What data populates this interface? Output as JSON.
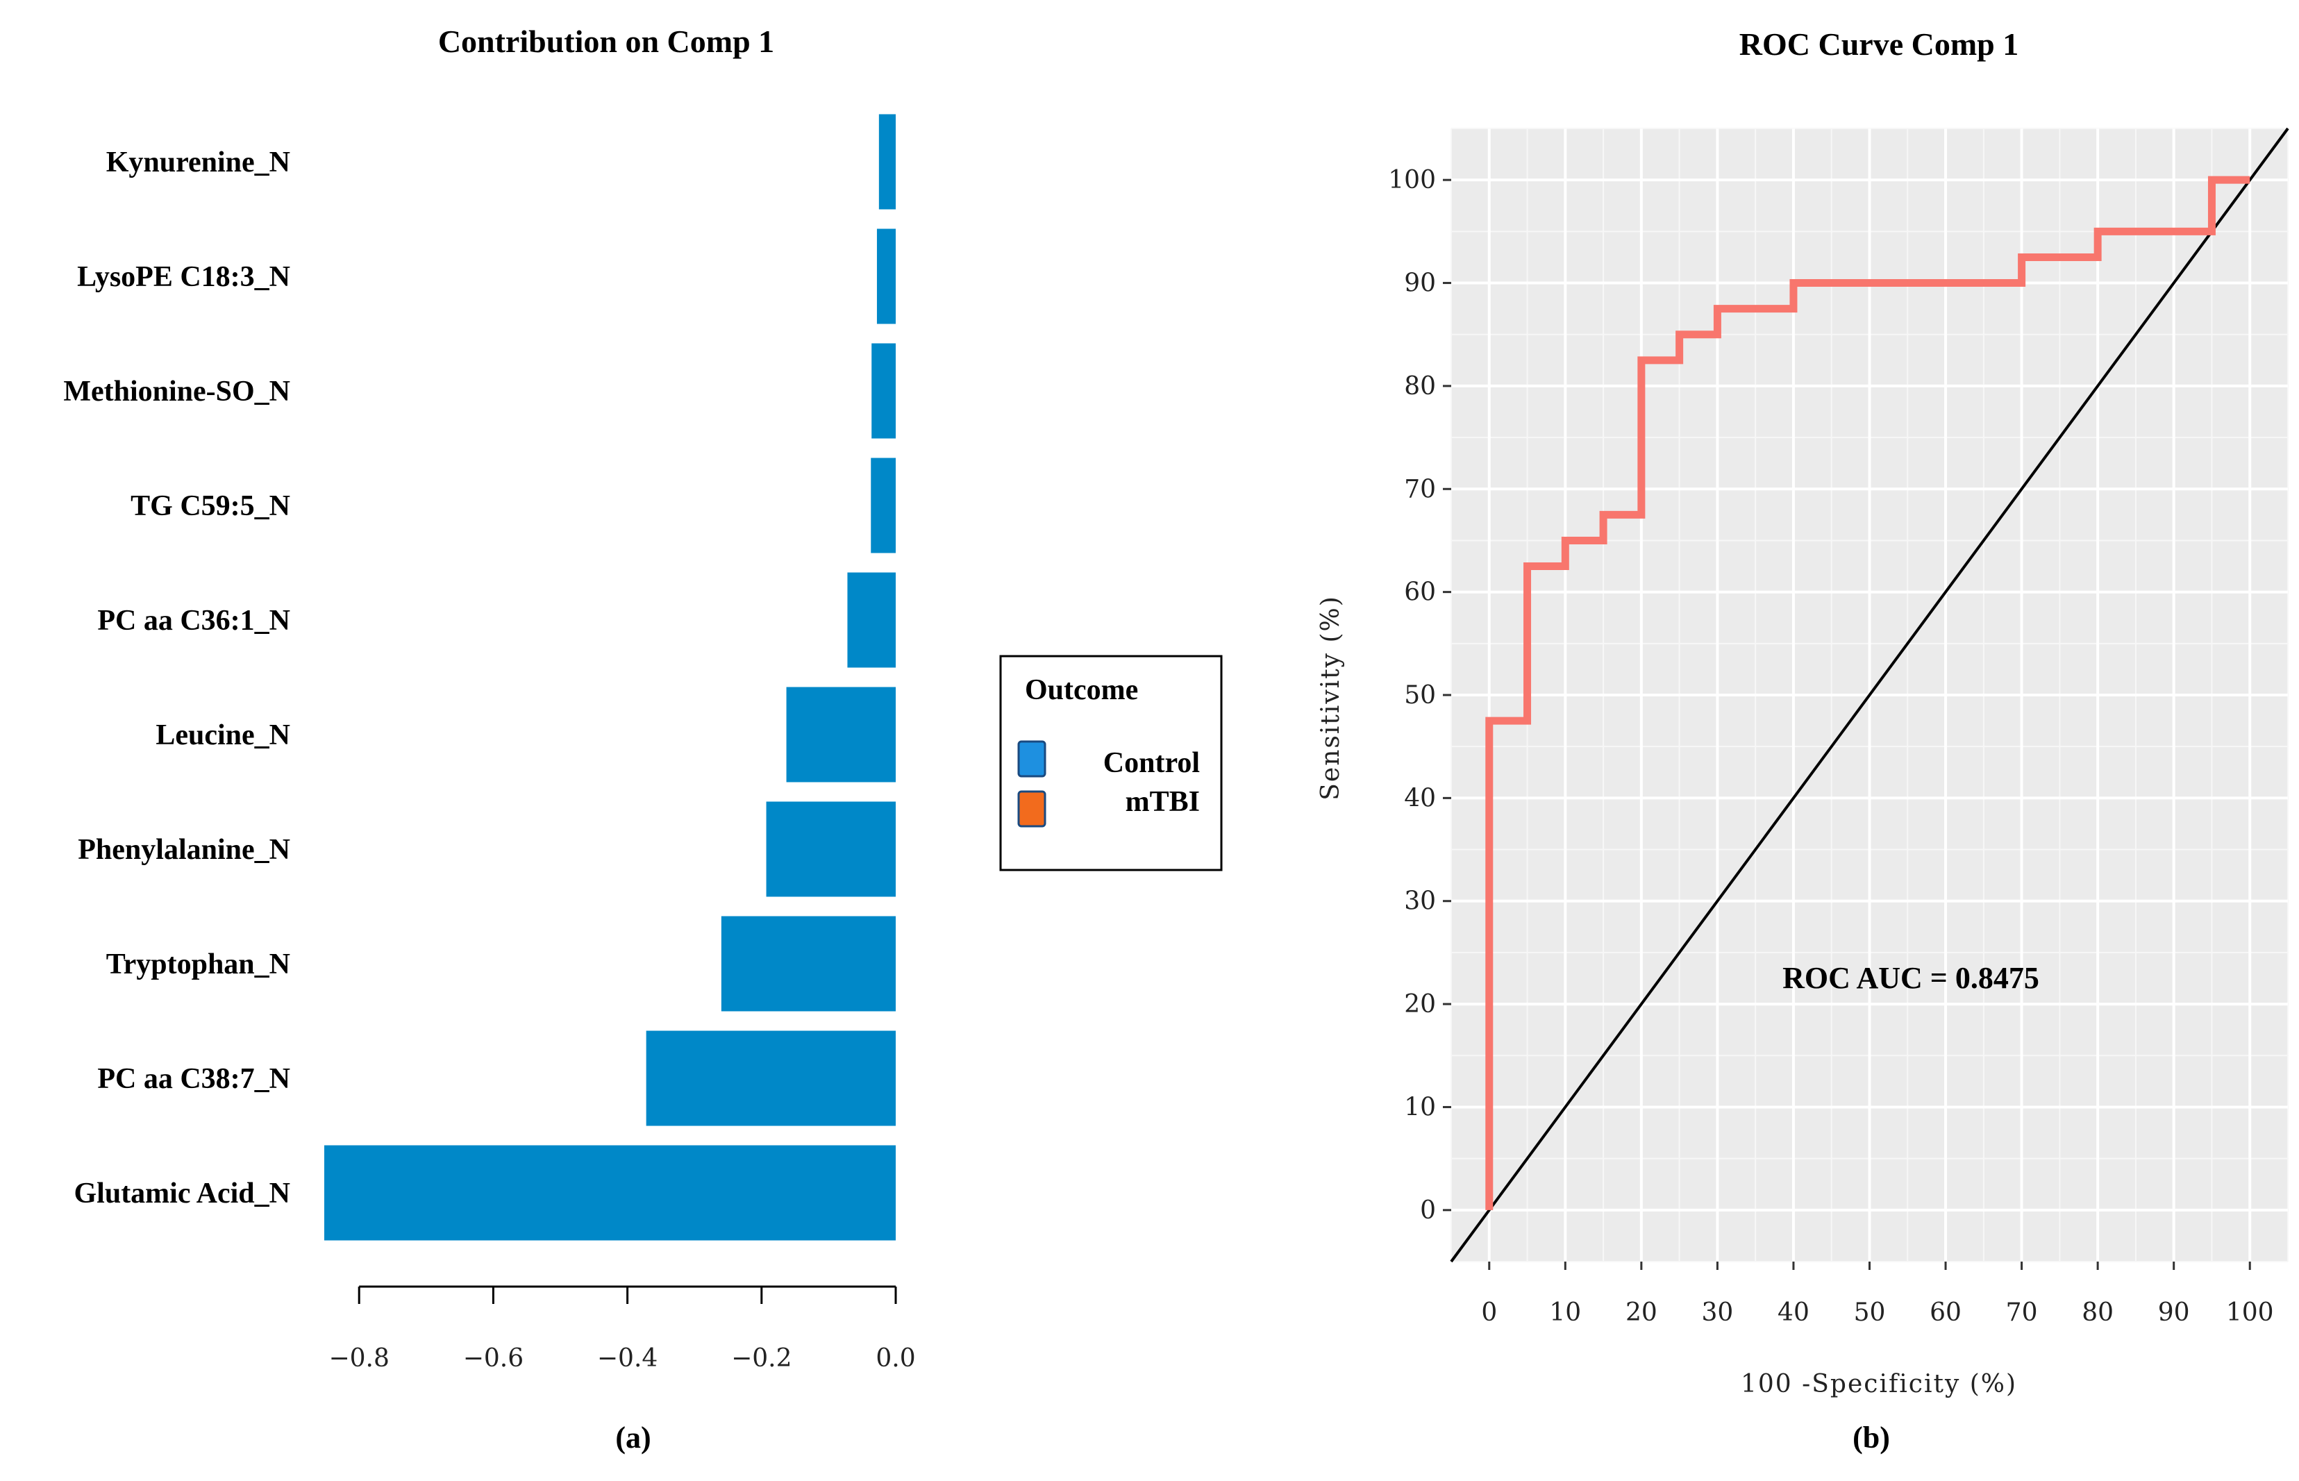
{
  "chart_data": [
    {
      "type": "bar",
      "orientation": "horizontal",
      "title": "Contribution on Comp 1",
      "panel_label": "(a)",
      "categories": [
        "Kynurenine_N",
        "LysoPE C18:3_N",
        "Methionine-SO_N",
        "TG C59:5_N",
        "PC aa C36:1_N",
        "Leucine_N",
        "Phenylalanine_N",
        "Tryptophan_N",
        "PC aa C38:7_N",
        "Glutamic Acid_N"
      ],
      "values": [
        -0.025,
        -0.028,
        -0.036,
        -0.037,
        -0.072,
        -0.163,
        -0.193,
        -0.26,
        -0.372,
        -0.852
      ],
      "xlim": [
        -0.85,
        0.0
      ],
      "xticks": [
        -0.8,
        -0.6,
        -0.4,
        -0.2,
        0.0
      ],
      "xtick_labels": [
        "−0.8",
        "−0.6",
        "−0.4",
        "−0.2",
        "0.0"
      ],
      "bar_color": "#0088C8",
      "legend": {
        "title": "Outcome",
        "entries": [
          {
            "label": "Control",
            "color": "#1E90E0"
          },
          {
            "label": "mTBI",
            "color": "#F26B1D"
          }
        ]
      }
    },
    {
      "type": "line",
      "title": "ROC Curve Comp 1",
      "panel_label": "(b)",
      "xlabel": "100 -Specificity (%)",
      "ylabel": "Sensitivity (%)",
      "xlim": [
        -5,
        105
      ],
      "ylim": [
        -5,
        105
      ],
      "xticks": [
        0,
        10,
        20,
        30,
        40,
        50,
        60,
        70,
        80,
        90,
        100
      ],
      "yticks": [
        0,
        10,
        20,
        30,
        40,
        50,
        60,
        70,
        80,
        90,
        100
      ],
      "xtick_labels": [
        "0",
        "10",
        "20",
        "30",
        "40",
        "50",
        "60",
        "70",
        "80",
        "90",
        "100"
      ],
      "ytick_labels": [
        "0",
        "10",
        "20",
        "30",
        "40",
        "50",
        "60",
        "70",
        "80",
        "90",
        "100"
      ],
      "grid": true,
      "series": [
        {
          "name": "ROC",
          "color": "#F8766D",
          "x": [
            0,
            0,
            5,
            5,
            10,
            10,
            15,
            15,
            20,
            20,
            25,
            25,
            30,
            30,
            40,
            40,
            70,
            70,
            80,
            80,
            95,
            95,
            100
          ],
          "y": [
            0,
            47.5,
            47.5,
            62.5,
            62.5,
            65,
            65,
            67.5,
            67.5,
            82.5,
            82.5,
            85,
            85,
            87.5,
            87.5,
            90,
            90,
            92.5,
            92.5,
            95,
            95,
            100,
            100
          ]
        },
        {
          "name": "diagonal",
          "color": "#000000",
          "x": [
            -5,
            105
          ],
          "y": [
            -5,
            105
          ]
        }
      ],
      "annotation": "ROC AUC = 0.8475"
    }
  ]
}
